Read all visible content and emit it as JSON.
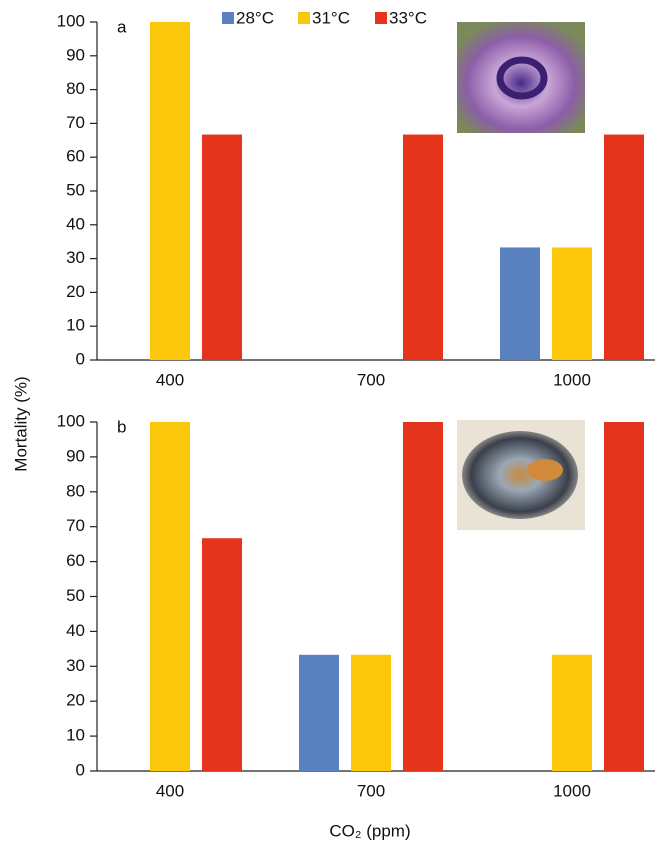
{
  "chart_data": [
    {
      "type": "bar",
      "panel_label": "a",
      "y_label": "Mortality (%)",
      "categories": [
        "400",
        "700",
        "1000"
      ],
      "series": [
        {
          "name": "28°C",
          "color": "#5b82c0",
          "values": [
            0,
            0,
            33.3
          ]
        },
        {
          "name": "31°C",
          "color": "#fcc70a",
          "values": [
            100,
            0,
            33.3
          ]
        },
        {
          "name": "33°C",
          "color": "#e5341c",
          "values": [
            66.7,
            66.7,
            66.7
          ]
        }
      ],
      "ylim": [
        0,
        100
      ],
      "yticks": [
        0,
        10,
        20,
        30,
        40,
        50,
        60,
        70,
        80,
        90,
        100
      ]
    },
    {
      "type": "bar",
      "panel_label": "b",
      "x_label": "CO₂ (ppm)",
      "categories": [
        "400",
        "700",
        "1000"
      ],
      "series": [
        {
          "color": "#5b82c0",
          "values": [
            0,
            33.3,
            0
          ]
        },
        {
          "color": "#fcc70a",
          "values": [
            100,
            33.3,
            33.3
          ]
        },
        {
          "color": "#e5341c",
          "values": [
            66.7,
            100,
            100
          ]
        }
      ],
      "ylim": [
        0,
        100
      ],
      "yticks": [
        0,
        10,
        20,
        30,
        40,
        50,
        60,
        70,
        80,
        90,
        100
      ]
    }
  ]
}
